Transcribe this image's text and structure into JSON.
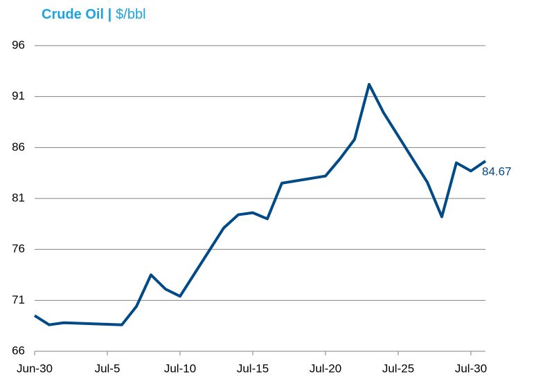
{
  "chart_data": {
    "type": "line",
    "title": "Crude Oil |",
    "unit": "$/bbl",
    "x": [
      0,
      1,
      2,
      6,
      7,
      8,
      9,
      10,
      13,
      14,
      15,
      16,
      17,
      20,
      21,
      22,
      23,
      24,
      27,
      28,
      29,
      30,
      31
    ],
    "values": [
      69.5,
      68.6,
      68.8,
      68.6,
      70.4,
      73.5,
      72.1,
      71.4,
      78.1,
      79.4,
      79.6,
      79.0,
      82.5,
      83.2,
      84.9,
      86.8,
      92.2,
      89.4,
      82.6,
      79.2,
      84.5,
      83.7,
      84.67
    ],
    "color": "#004a87",
    "xlim": [
      0,
      31
    ],
    "xticks": [
      {
        "value": 0,
        "label": "Jun-30"
      },
      {
        "value": 5,
        "label": "Jul-5"
      },
      {
        "value": 10,
        "label": "Jul-10"
      },
      {
        "value": 15,
        "label": "Jul-15"
      },
      {
        "value": 20,
        "label": "Jul-20"
      },
      {
        "value": 25,
        "label": "Jul-25"
      },
      {
        "value": 30,
        "label": "Jul-30"
      }
    ],
    "ylim": [
      66,
      96
    ],
    "yticks": [
      66,
      71,
      76,
      81,
      86,
      91,
      96
    ],
    "grid": true,
    "last_value_label": true
  }
}
